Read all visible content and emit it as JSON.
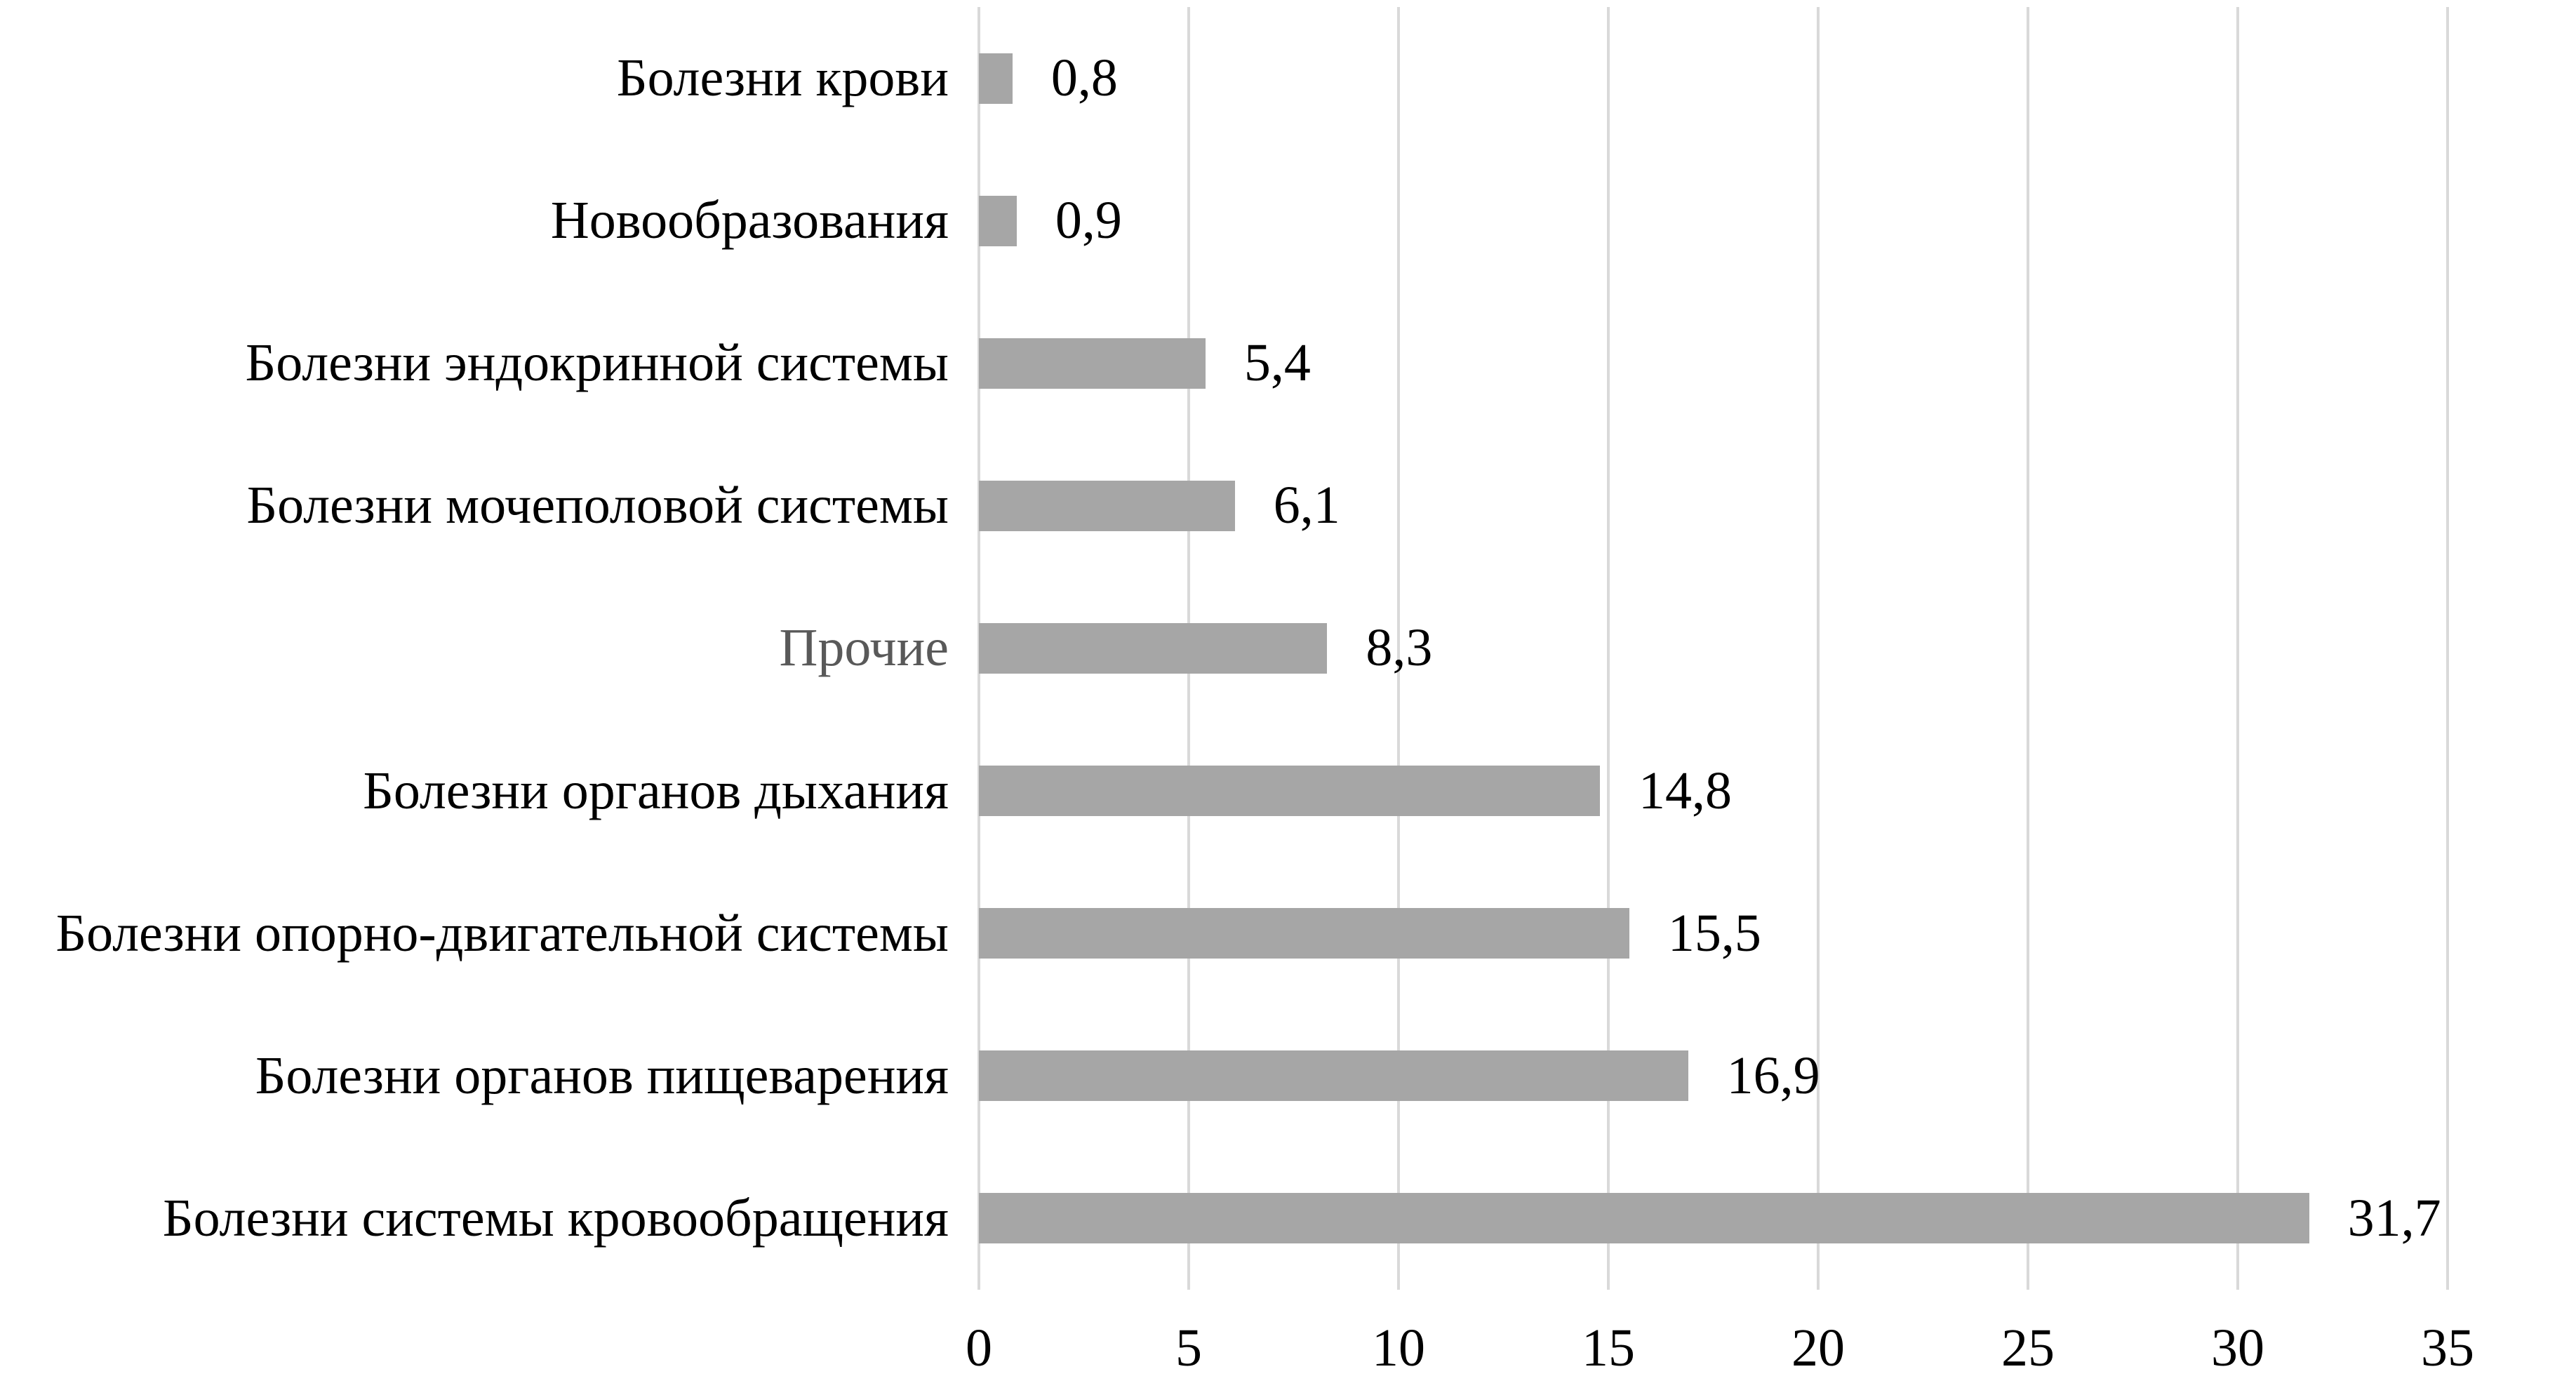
{
  "chart_data": {
    "type": "bar",
    "orientation": "horizontal",
    "title": "",
    "xlabel": "",
    "ylabel": "",
    "categories": [
      "Болезни крови",
      "Новообразования",
      "Болезни эндокринной системы",
      "Болезни мочеполовой системы",
      "Прочие",
      "Болезни органов дыхания",
      "Болезни опорно-двигательной системы",
      "Болезни органов пищеварения",
      "Болезни системы кровообращения"
    ],
    "values": [
      0.8,
      0.9,
      5.4,
      6.1,
      8.3,
      14.8,
      15.5,
      16.9,
      31.7
    ],
    "value_labels": [
      "0,8",
      "0,9",
      "5,4",
      "6,1",
      "8,3",
      "14,8",
      "15,5",
      "16,9",
      "31,7"
    ],
    "label_colors": [
      "#000000",
      "#000000",
      "#000000",
      "#000000",
      "#595959",
      "#000000",
      "#000000",
      "#000000",
      "#000000"
    ],
    "xlim": [
      0,
      35
    ],
    "x_ticks": [
      0,
      5,
      10,
      15,
      20,
      25,
      30,
      35
    ],
    "x_tick_labels": [
      "0",
      "5",
      "10",
      "15",
      "20",
      "25",
      "30",
      "35"
    ],
    "grid": "vertical-gridlines-on",
    "legend": "none",
    "colors": {
      "bar_fill": "#a6a6a6",
      "gridline": "#d9d9d9",
      "label_text": "#000000",
      "muted_label_text": "#595959",
      "value_text": "#000000",
      "tick_text": "#000000",
      "background": "#ffffff"
    }
  }
}
